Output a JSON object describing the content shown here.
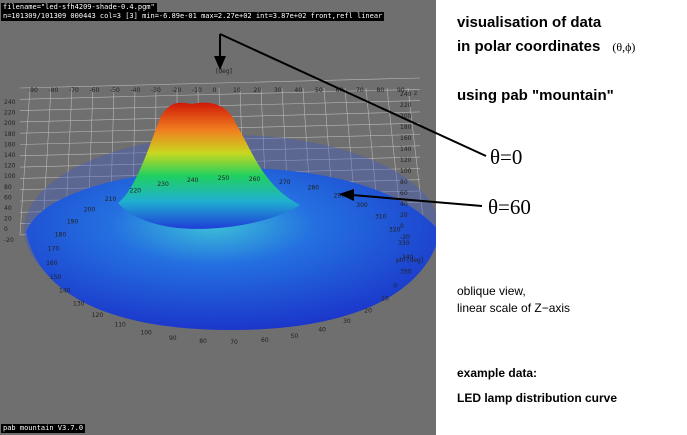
{
  "window": {
    "status_line1": "filename=\"led-sfh4209-shade-0.4.pgm\"",
    "status_line2": "n=101309/101309 000443 col=3 [3] min=-6.89e-01 max=2.27e+02 int=3.87e+02 front,refl linear",
    "footer": "pab mountain V3.7.0"
  },
  "axes": {
    "top_scale": [
      "-90",
      "-80",
      "-70",
      "-60",
      "-50",
      "-40",
      "-30",
      "-20",
      "-10",
      "0",
      "10",
      "20",
      "30",
      "40",
      "50",
      "60",
      "70",
      "80",
      "90"
    ],
    "top_unit": "[deg]",
    "left_scale": [
      "240",
      "220",
      "200",
      "180",
      "160",
      "140",
      "120",
      "100",
      "80",
      "60",
      "40",
      "20",
      "0",
      "-20"
    ],
    "right_scale": [
      "240",
      "220",
      "200",
      "180",
      "160",
      "140",
      "120",
      "100",
      "80",
      "60",
      "40",
      "20",
      "0",
      "-20"
    ],
    "right_unit": "z",
    "phi_unit": "phi [deg]",
    "phi_ticks": [
      "0",
      "10",
      "20",
      "30",
      "40",
      "50",
      "60",
      "70",
      "80",
      "90",
      "100",
      "110",
      "120",
      "130",
      "140",
      "150",
      "160",
      "170",
      "180",
      "190",
      "200",
      "210",
      "220",
      "230",
      "240",
      "250",
      "260",
      "270",
      "280",
      "290",
      "300",
      "310",
      "320",
      "330",
      "340",
      "350"
    ]
  },
  "annotations": {
    "title_line1": "visualisation of data",
    "title_line2": "in polar coordinates",
    "coords": "(θ,ϕ)",
    "subtitle": "using pab \"mountain\"",
    "theta0": "θ=0",
    "theta60": "θ=60",
    "view_line1": "oblique view,",
    "view_line2": "linear scale of Z−axis",
    "example_label": "example data:",
    "example_value": "LED lamp distribution curve"
  },
  "colors": {
    "viewport_bg": "#6f6f6f",
    "disc": "#1f3dd8",
    "peak": "#e02010",
    "grid": "#b8b8b8"
  }
}
